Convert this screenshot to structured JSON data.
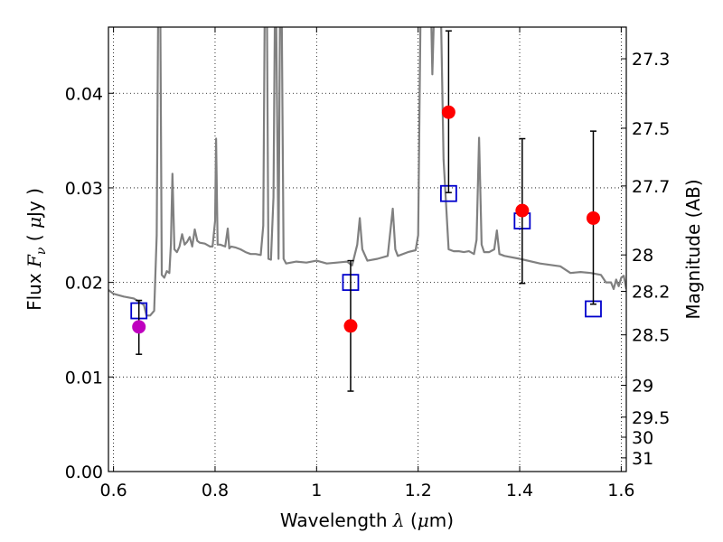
{
  "chart_data": {
    "type": "scatter",
    "title": "",
    "xlabel": {
      "pre": "Wavelength ",
      "sym": "λ",
      "post": " (",
      "mu": "μ",
      "unit": "m)"
    },
    "ylabel": {
      "pre": "Flux ",
      "sym": "F",
      "sub": "ν",
      "mid": " ( ",
      "mu": "μ",
      "unit": "Jy )"
    },
    "y2label": "Magnitude (AB)",
    "xlim": [
      0.59,
      1.61
    ],
    "ylim": [
      0.0,
      0.047
    ],
    "grid": true,
    "x_ticks": [
      0.6,
      0.8,
      1.0,
      1.2,
      1.4,
      1.6
    ],
    "x_tick_labels": [
      "0.6",
      "0.8",
      "1",
      "1.2",
      "1.4",
      "1.6"
    ],
    "y_ticks": [
      0.0,
      0.01,
      0.02,
      0.03,
      0.04
    ],
    "y_tick_labels": [
      "0.00",
      "0.01",
      "0.02",
      "0.03",
      "0.04"
    ],
    "y2_ticks": [
      27.3,
      27.5,
      27.7,
      28,
      28.2,
      28.5,
      29,
      29.5,
      30,
      31
    ],
    "y2_tick_labels": [
      "27.3",
      "27.5",
      "27.7",
      "28",
      "28.2",
      "28.5",
      "29",
      "29.5",
      "30",
      "31"
    ],
    "colors": {
      "model": "#808080",
      "observed": "#ff0000",
      "observed_alt": "#bf00bf",
      "model_band": "#0000cc",
      "errorbar": "#000000"
    },
    "model_spectrum": {
      "x": [
        0.59,
        0.6,
        0.62,
        0.64,
        0.655,
        0.66,
        0.665,
        0.672,
        0.68,
        0.685,
        0.688,
        0.69,
        0.692,
        0.695,
        0.7,
        0.705,
        0.71,
        0.713,
        0.716,
        0.72,
        0.725,
        0.73,
        0.735,
        0.74,
        0.745,
        0.75,
        0.755,
        0.76,
        0.765,
        0.77,
        0.78,
        0.79,
        0.795,
        0.8,
        0.802,
        0.805,
        0.81,
        0.82,
        0.825,
        0.828,
        0.832,
        0.84,
        0.85,
        0.86,
        0.87,
        0.88,
        0.89,
        0.895,
        0.898,
        0.9,
        0.902,
        0.905,
        0.91,
        0.915,
        0.918,
        0.92,
        0.925,
        0.928,
        0.931,
        0.935,
        0.94,
        0.96,
        0.98,
        1.0,
        1.02,
        1.04,
        1.06,
        1.07,
        1.08,
        1.085,
        1.09,
        1.1,
        1.12,
        1.14,
        1.15,
        1.155,
        1.16,
        1.18,
        1.195,
        1.2,
        1.205,
        1.22,
        1.225,
        1.228,
        1.232,
        1.236,
        1.24,
        1.245,
        1.25,
        1.26,
        1.27,
        1.28,
        1.29,
        1.3,
        1.31,
        1.315,
        1.32,
        1.325,
        1.33,
        1.34,
        1.35,
        1.355,
        1.36,
        1.37,
        1.4,
        1.44,
        1.48,
        1.5,
        1.52,
        1.54,
        1.56,
        1.57,
        1.58,
        1.585,
        1.59,
        1.595,
        1.6,
        1.605,
        1.61
      ],
      "y": [
        0.0192,
        0.0188,
        0.0185,
        0.0183,
        0.0178,
        0.0176,
        0.0165,
        0.0165,
        0.017,
        0.025,
        0.05,
        0.05,
        0.05,
        0.0208,
        0.0205,
        0.0212,
        0.021,
        0.024,
        0.0315,
        0.0235,
        0.0232,
        0.0238,
        0.0251,
        0.024,
        0.0243,
        0.0248,
        0.0238,
        0.0256,
        0.0244,
        0.0242,
        0.0241,
        0.0238,
        0.0238,
        0.0265,
        0.0352,
        0.024,
        0.024,
        0.0238,
        0.0257,
        0.0236,
        0.0238,
        0.0237,
        0.0235,
        0.0232,
        0.023,
        0.023,
        0.0229,
        0.026,
        0.05,
        0.05,
        0.05,
        0.0225,
        0.0224,
        0.029,
        0.05,
        0.05,
        0.0225,
        0.05,
        0.05,
        0.0225,
        0.022,
        0.0222,
        0.0221,
        0.0223,
        0.022,
        0.0221,
        0.0222,
        0.0218,
        0.024,
        0.0268,
        0.0235,
        0.0223,
        0.0225,
        0.0228,
        0.0278,
        0.0235,
        0.0228,
        0.0232,
        0.0234,
        0.025,
        0.05,
        0.05,
        0.05,
        0.042,
        0.05,
        0.05,
        0.05,
        0.048,
        0.033,
        0.0235,
        0.0233,
        0.0233,
        0.0232,
        0.0233,
        0.023,
        0.0245,
        0.0353,
        0.024,
        0.0232,
        0.0232,
        0.0235,
        0.0255,
        0.023,
        0.0228,
        0.0225,
        0.022,
        0.0217,
        0.021,
        0.0211,
        0.021,
        0.0208,
        0.02,
        0.02,
        0.0193,
        0.0203,
        0.0196,
        0.0205,
        0.0207,
        0.0193
      ]
    },
    "observed_points": [
      {
        "x": 0.65,
        "y": 0.0153,
        "yerr_low": 0.0124,
        "yerr_high": 0.0181,
        "color": "observed_alt"
      },
      {
        "x": 1.067,
        "y": 0.0154,
        "yerr_low": 0.0085,
        "yerr_high": 0.0223,
        "color": "observed"
      },
      {
        "x": 1.26,
        "y": 0.038,
        "yerr_low": 0.0295,
        "yerr_high": 0.0466,
        "color": "observed"
      },
      {
        "x": 1.405,
        "y": 0.0276,
        "yerr_low": 0.0199,
        "yerr_high": 0.0352,
        "color": "observed"
      },
      {
        "x": 1.545,
        "y": 0.0268,
        "yerr_low": 0.0177,
        "yerr_high": 0.036,
        "color": "observed"
      }
    ],
    "model_band_points": [
      {
        "x": 0.65,
        "y": 0.017
      },
      {
        "x": 1.067,
        "y": 0.02
      },
      {
        "x": 1.26,
        "y": 0.0294
      },
      {
        "x": 1.405,
        "y": 0.0265
      },
      {
        "x": 1.545,
        "y": 0.0172
      }
    ]
  }
}
